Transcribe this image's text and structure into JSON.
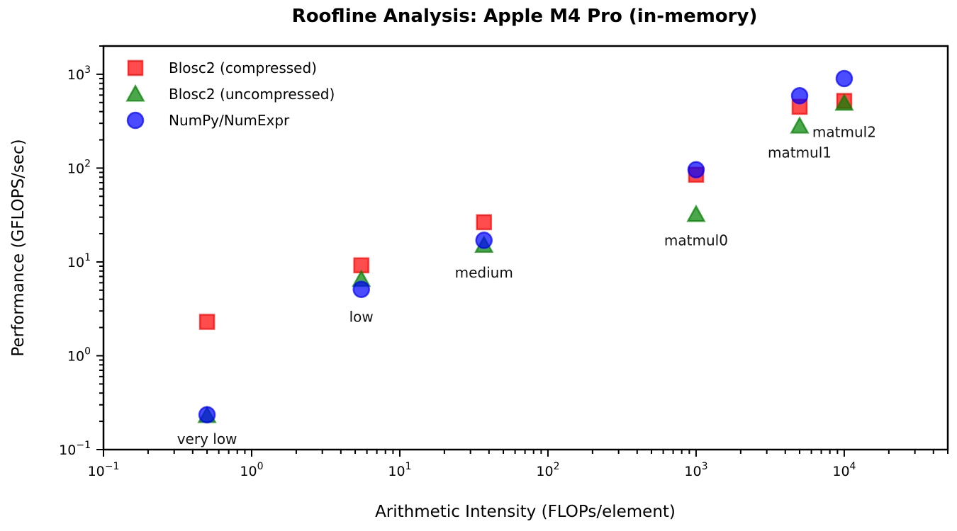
{
  "title": "Roofline Analysis: Apple M4 Pro (in-memory)",
  "chart_data": {
    "type": "scatter",
    "title": "Roofline Analysis: Apple M4 Pro (in-memory)",
    "xlabel": "Arithmetic Intensity (FLOPs/element)",
    "ylabel": "Performance (GFLOPS/sec)",
    "xscale": "log",
    "yscale": "log",
    "xlim": [
      0.1,
      50000
    ],
    "ylim": [
      0.1,
      2000
    ],
    "grid": false,
    "legend_position": "upper left",
    "x_ticks": [
      "10^-1",
      "10^0",
      "10^1",
      "10^2",
      "10^3",
      "10^4"
    ],
    "y_ticks": [
      "10^-1",
      "10^0",
      "10^1",
      "10^2",
      "10^3"
    ],
    "categories": [
      "very low",
      "low",
      "medium",
      "matmul0",
      "matmul1",
      "matmul2"
    ],
    "x": [
      0.5,
      5.5,
      37,
      1000,
      5000,
      10000
    ],
    "series": [
      {
        "name": "Blosc2 (compressed)",
        "marker": "square",
        "color": "#ff0000",
        "values": [
          2.3,
          9.2,
          26.5,
          85,
          450,
          520
        ]
      },
      {
        "name": "Blosc2 (uncompressed)",
        "marker": "triangle",
        "color": "#008000",
        "values": [
          0.23,
          6.5,
          15,
          32,
          280,
          490
        ]
      },
      {
        "name": "NumPy/NumExpr",
        "marker": "circle",
        "color": "#0000ff",
        "values": [
          0.235,
          5.1,
          17,
          96,
          590,
          900
        ]
      }
    ],
    "annotations": [
      {
        "text": "very low",
        "x": 0.5,
        "y": 0.115
      },
      {
        "text": "low",
        "x": 5.5,
        "y": 2.3
      },
      {
        "text": "medium",
        "x": 37,
        "y": 6.8
      },
      {
        "text": "matmul0",
        "x": 1000,
        "y": 15
      },
      {
        "text": "matmul1",
        "x": 5000,
        "y": 130
      },
      {
        "text": "matmul2",
        "x": 10000,
        "y": 215
      }
    ]
  }
}
